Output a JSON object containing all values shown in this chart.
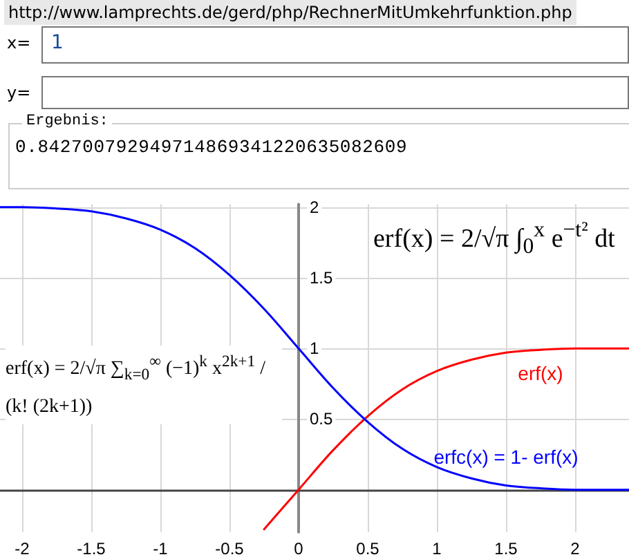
{
  "chart_data": {
    "type": "line",
    "annotations": [
      "http://www.lamprechts.de/gerd/php/RechnerMitUmkehrfunktion.php",
      "x=",
      "1",
      "y=",
      "Ergebnis:",
      "0.842700792949714869341220635082609",
      "erf(x) = 2/√π ∫$_{0}$$^{x}$ e$^{−t²}$ dt",
      "erf(x) = 2/√π ∑$_{k=0}$$^{∞}$ (−1)$^{k}$ x$^{2k+1}$ / (k! (2k+1))"
    ],
    "series": [
      {
        "name": "erf(x)",
        "color": "#ff0000",
        "x": [
          -0.25,
          0,
          0.25,
          0.5,
          0.75,
          1,
          1.25,
          1.5,
          1.75,
          2,
          2.25,
          2.39
        ],
        "values": [
          -0.28,
          0,
          0.28,
          0.52,
          0.71,
          0.84,
          0.92,
          0.97,
          0.99,
          1.0,
          1.0,
          1.0
        ]
      },
      {
        "name": "erfc(x) = 1- erf(x)",
        "color": "#0000ff",
        "x": [
          -2.16,
          -2,
          -1.75,
          -1.5,
          -1.25,
          -1,
          -0.75,
          -0.5,
          -0.25,
          0,
          0.25,
          0.5,
          0.75,
          1,
          1.25,
          1.5,
          1.75,
          2,
          2.25,
          2.39
        ],
        "values": [
          2.0,
          2.0,
          1.99,
          1.97,
          1.92,
          1.84,
          1.71,
          1.52,
          1.28,
          1.0,
          0.72,
          0.48,
          0.29,
          0.16,
          0.08,
          0.03,
          0.01,
          0.0,
          0.0,
          0.0
        ]
      }
    ],
    "xlim": [
      -2.16,
      2.39
    ],
    "xticks": [
      -2,
      -1.5,
      -1,
      -0.5,
      0,
      0.5,
      1,
      1.5,
      2
    ],
    "ylim": [
      -0.3,
      2.02
    ],
    "yticks": [
      0.5,
      1,
      1.5,
      2
    ],
    "grid": true,
    "legend": false,
    "marker": "none",
    "line_style": "solid"
  }
}
